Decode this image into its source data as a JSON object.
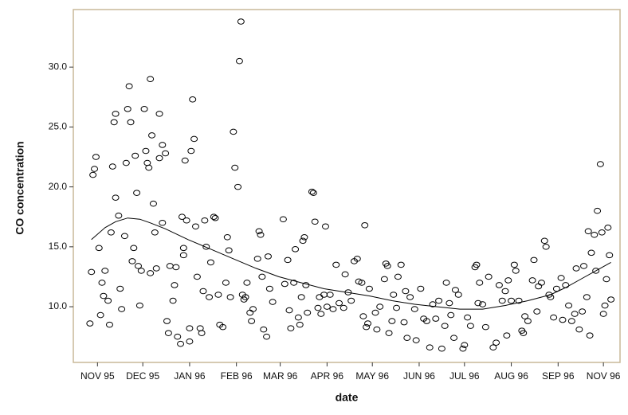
{
  "chart_data": {
    "type": "scatter",
    "x_label": "date",
    "y_label": "CO concentration",
    "marker_color": "#000000",
    "line_color": "#000000",
    "xlim": [
      -16,
      346
    ],
    "ylim": [
      5.35,
      34.8
    ],
    "xticks": [
      {
        "value": 0,
        "label": "NOV 95"
      },
      {
        "value": 30,
        "label": "DEC 95"
      },
      {
        "value": 61,
        "label": "JAN 96"
      },
      {
        "value": 92,
        "label": "FEB 96"
      },
      {
        "value": 121,
        "label": "MAR 96"
      },
      {
        "value": 152,
        "label": "APR 96"
      },
      {
        "value": 182,
        "label": "MAY 96"
      },
      {
        "value": 213,
        "label": "JUN 96"
      },
      {
        "value": 243,
        "label": "JUL 96"
      },
      {
        "value": 274,
        "label": "AUG 96"
      },
      {
        "value": 305,
        "label": "SEP 96"
      },
      {
        "value": 335,
        "label": "NOV 96"
      }
    ],
    "yticks": [
      {
        "value": 10,
        "label": "10.0"
      },
      {
        "value": 15,
        "label": "15.0"
      },
      {
        "value": 20,
        "label": "20.0"
      },
      {
        "value": 25,
        "label": "25.0"
      },
      {
        "value": 30,
        "label": "30.0"
      }
    ],
    "x": [
      -5,
      -4,
      -3,
      -2,
      -1,
      2,
      3,
      1,
      4,
      5,
      7,
      8,
      9,
      10,
      11,
      12,
      12,
      14,
      15,
      16,
      18,
      19,
      20,
      21,
      22,
      23,
      24,
      25,
      26,
      27,
      28,
      29,
      31,
      32,
      33,
      34,
      35,
      36,
      37,
      38,
      39,
      35,
      41,
      41,
      43,
      45,
      43,
      48,
      46,
      47,
      50,
      51,
      52,
      53,
      55,
      56,
      57,
      57,
      58,
      59,
      61,
      61,
      62,
      64,
      63,
      65,
      66,
      68,
      69,
      70,
      71,
      72,
      74,
      75,
      77,
      78,
      80,
      81,
      83,
      85,
      86,
      87,
      88,
      90,
      91,
      93,
      94,
      95,
      96,
      97,
      98,
      99,
      101,
      102,
      103,
      106,
      107,
      108,
      109,
      110,
      112,
      113,
      114,
      116,
      123,
      124,
      126,
      127,
      128,
      130,
      131,
      133,
      134,
      135,
      136,
      137,
      138,
      139,
      142,
      143,
      144,
      146,
      147,
      148,
      150,
      151,
      152,
      154,
      156,
      158,
      160,
      164,
      163,
      166,
      168,
      170,
      172,
      173,
      175,
      176,
      177,
      178,
      179,
      180,
      184,
      185,
      187,
      190,
      191,
      192,
      193,
      195,
      196,
      198,
      199,
      201,
      203,
      204,
      205,
      207,
      210,
      211,
      214,
      216,
      218,
      220,
      222,
      224,
      226,
      228,
      230,
      231,
      233,
      234,
      236,
      237,
      239,
      242,
      243,
      245,
      247,
      250,
      251,
      252,
      253,
      255,
      257,
      259,
      262,
      264,
      266,
      268,
      270,
      271,
      272,
      274,
      276,
      277,
      279,
      281,
      282,
      283,
      285,
      288,
      289,
      291,
      292,
      294,
      296,
      297,
      299,
      300,
      302,
      304,
      307,
      308,
      310,
      312,
      314,
      316,
      317,
      319,
      321,
      322,
      324,
      325,
      326,
      327,
      329,
      330,
      331,
      333,
      334,
      335,
      336,
      337,
      338,
      339,
      340
    ],
    "values": [
      8.6,
      12.9,
      21,
      21.5,
      22.5,
      9.3,
      12,
      14.9,
      10.9,
      13,
      10.5,
      8.5,
      16.2,
      21.7,
      25.4,
      26.1,
      19.1,
      17.6,
      11.5,
      9.8,
      15.9,
      22,
      26.5,
      28.4,
      25.4,
      13.8,
      14.9,
      22.6,
      19.5,
      13.4,
      10.1,
      13,
      26.5,
      23,
      22,
      21.6,
      29,
      24.3,
      18.6,
      16.2,
      13.2,
      12.8,
      22.4,
      26.1,
      23.5,
      22.8,
      17,
      13.4,
      8.8,
      7.8,
      10.5,
      11.8,
      13.3,
      7.5,
      6.9,
      17.5,
      14.9,
      14.3,
      22.2,
      17.2,
      8.2,
      7.1,
      23,
      24,
      27.3,
      16.7,
      12.5,
      8.2,
      7.8,
      11.3,
      17.2,
      15,
      10.8,
      13.7,
      17.5,
      17.4,
      11,
      8.5,
      8.3,
      12,
      15.8,
      14.7,
      10.8,
      24.6,
      21.6,
      20,
      30.5,
      33.8,
      11,
      10.6,
      10.8,
      12,
      9.5,
      8.8,
      9.8,
      14,
      16.3,
      16,
      12.5,
      8.1,
      7.5,
      14.2,
      11.5,
      10.4,
      17.3,
      11.9,
      13.9,
      9.7,
      8.2,
      12,
      14.8,
      9.1,
      8.5,
      10.8,
      15.5,
      15.8,
      11.8,
      9.5,
      19.6,
      19.5,
      17.1,
      9.9,
      10.8,
      9.4,
      11,
      16.7,
      10,
      11,
      9.8,
      13.5,
      10.3,
      12.7,
      9.9,
      11.2,
      10.5,
      13.8,
      14,
      12.1,
      12,
      9.2,
      16.8,
      8.3,
      8.6,
      11.5,
      9.5,
      8.1,
      10,
      12.3,
      13.6,
      13.4,
      7.8,
      8.8,
      11,
      9.9,
      12.5,
      13.5,
      8.7,
      11.3,
      7.4,
      10.8,
      9.8,
      7.2,
      11.5,
      9,
      8.8,
      6.6,
      10.2,
      9,
      10.5,
      6.5,
      8.4,
      12,
      10.3,
      9.3,
      7.4,
      11.4,
      11,
      6.5,
      6.8,
      9.1,
      8.4,
      13.3,
      13.5,
      10.3,
      12,
      10.2,
      8.3,
      12.5,
      6.6,
      7,
      11.8,
      10.5,
      11.3,
      7.6,
      12.2,
      10.5,
      13.5,
      13,
      10.5,
      8,
      7.8,
      9.2,
      8.8,
      12.2,
      13.9,
      9.6,
      11.7,
      12,
      15.5,
      15,
      11,
      10.8,
      9.1,
      11.5,
      12.4,
      8.9,
      11.8,
      10.1,
      8.8,
      9.4,
      13.2,
      8.1,
      9.6,
      13.4,
      10.8,
      16.3,
      7.6,
      14.5,
      16,
      13,
      18,
      21.9,
      16.2,
      9.4,
      10.1,
      12.3,
      16.6,
      14.3,
      10.6
    ],
    "fit_x": [
      -4,
      5,
      12,
      20,
      28,
      35,
      45,
      60,
      75,
      90,
      105,
      120,
      135,
      150,
      165,
      180,
      195,
      210,
      225,
      240,
      255,
      270,
      285,
      300,
      310,
      320,
      330,
      340
    ],
    "fit_values": [
      15.6,
      16.6,
      17.1,
      17.4,
      17.3,
      17,
      16.5,
      15.6,
      14.8,
      14,
      13.2,
      12.5,
      12,
      11.5,
      11.2,
      10.9,
      10.5,
      10.2,
      10,
      9.8,
      9.8,
      10.1,
      10.5,
      11,
      11.6,
      12.3,
      13,
      13.7
    ]
  }
}
